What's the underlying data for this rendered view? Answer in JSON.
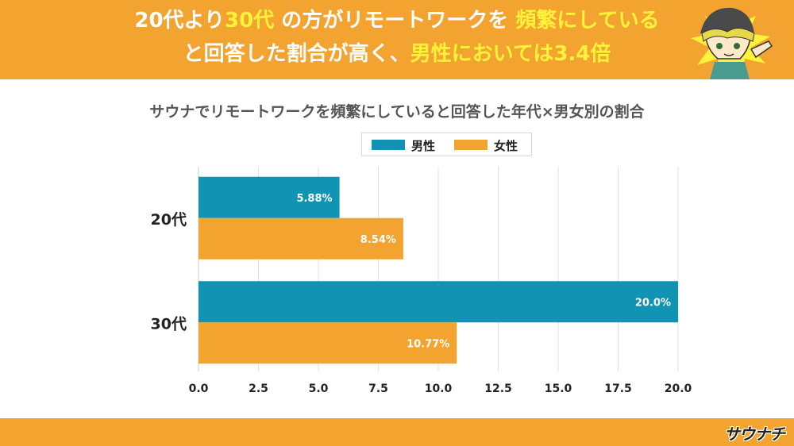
{
  "header": {
    "line1": [
      {
        "text": "20代より",
        "highlight": false
      },
      {
        "text": "30代",
        "highlight": true
      },
      {
        "text": "の方がリモートワークを",
        "highlight": false
      },
      {
        "text": "頻繁にしている",
        "highlight": true
      }
    ],
    "line2": [
      {
        "text": "と回答した割合が高く、",
        "highlight": false
      },
      {
        "text": "男性においては3.4倍",
        "highlight": true
      }
    ]
  },
  "footer": {
    "logo_text": "サウナチ"
  },
  "colors": {
    "male": "#1193b3",
    "female": "#f3a430",
    "accent": "#f3a430",
    "highlight": "#fff23a"
  },
  "chart_data": {
    "type": "bar",
    "orientation": "horizontal",
    "title": "サウナでリモートワークを頻繁にしていると回答した年代×男女別の割合",
    "categories": [
      "20代",
      "30代"
    ],
    "series": [
      {
        "name": "男性",
        "values": [
          5.88,
          20.0
        ],
        "labels": [
          "5.88%",
          "20.0%"
        ]
      },
      {
        "name": "女性",
        "values": [
          8.54,
          10.77
        ],
        "labels": [
          "8.54%",
          "10.77%"
        ]
      }
    ],
    "xlim": [
      0,
      20
    ],
    "xticks": [
      "0.0",
      "2.5",
      "5.0",
      "7.5",
      "10.0",
      "12.5",
      "15.0",
      "17.5",
      "20.0"
    ],
    "grid": true,
    "legend": "top-center"
  }
}
